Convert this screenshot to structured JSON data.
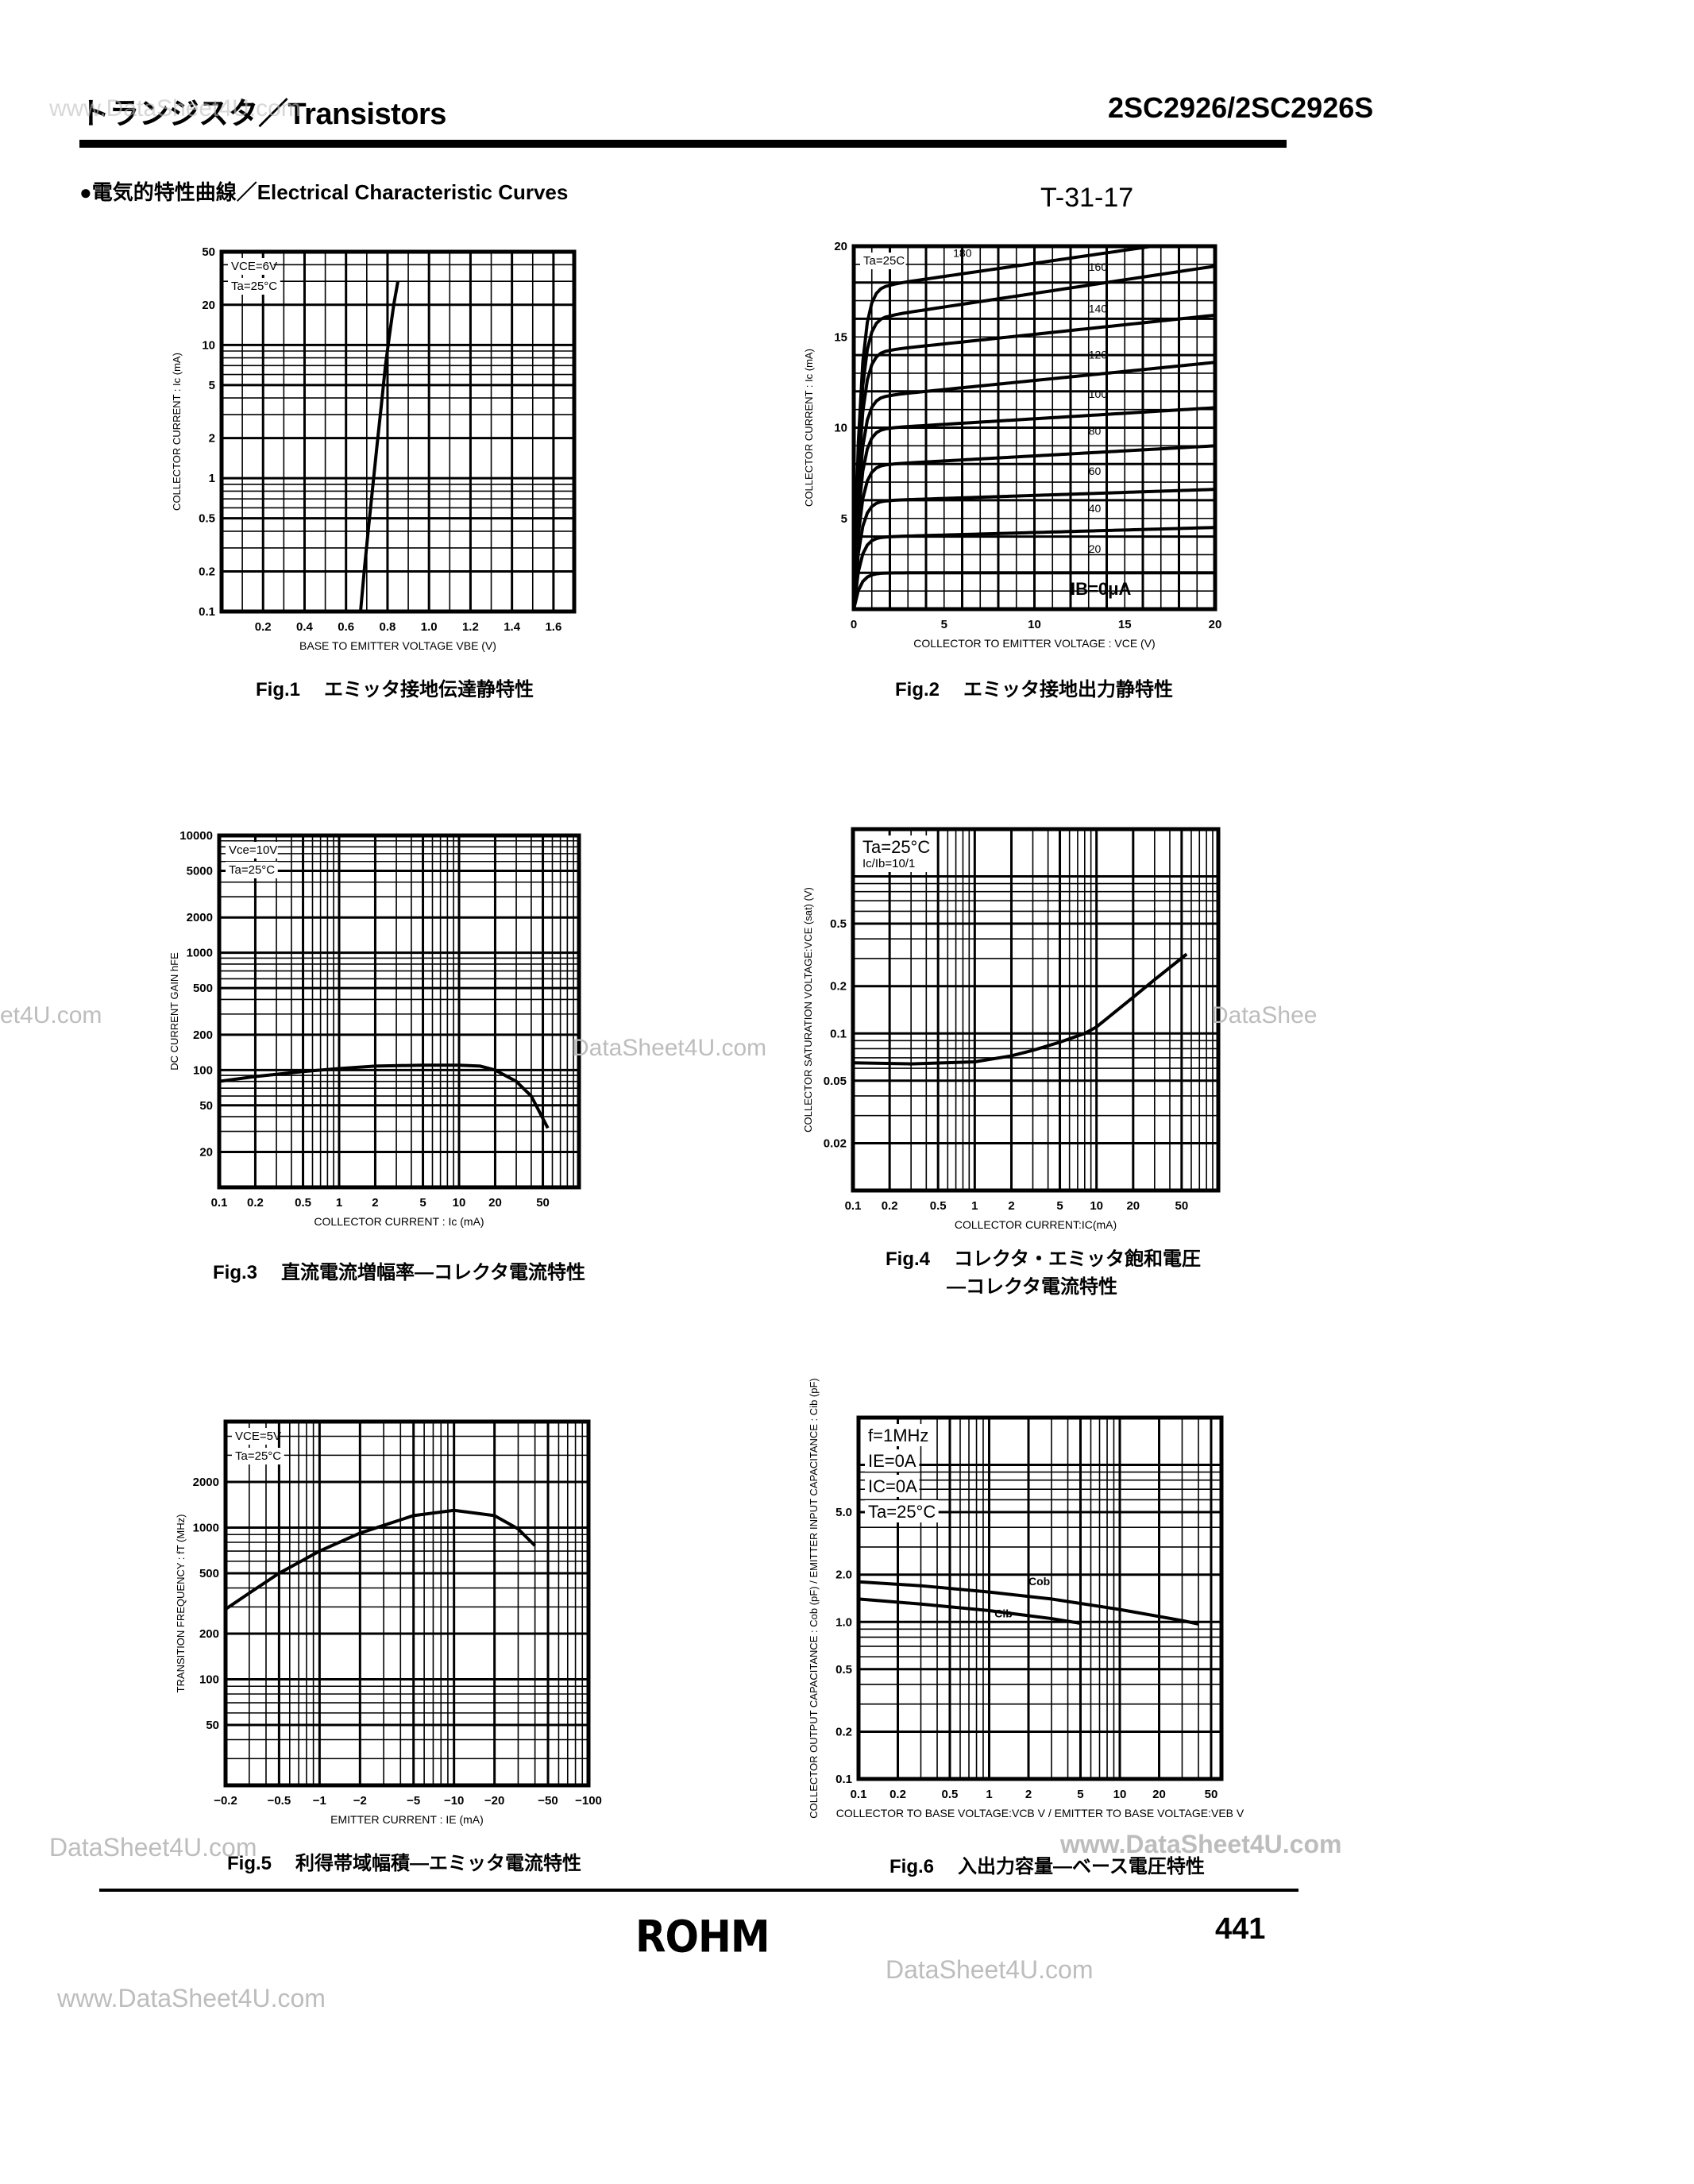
{
  "header": {
    "title": "トランジスタ／Transistors",
    "part_number": "2SC2926/2SC2926S",
    "section_title": "●電気的特性曲線／Electrical Characteristic Curves",
    "doc_code": "T-31-17"
  },
  "footer": {
    "brand": "ROHM",
    "page_number": "441"
  },
  "watermarks": [
    "www.DataSheet4U.com",
    "DataSheet4U.com",
    "et4U.com",
    "DataShee",
    "www.DataSheet4U.com",
    "DataSheet4U.com",
    "DataSheet4U.com"
  ],
  "figures": [
    {
      "number": "Fig.1",
      "caption": "エミッタ接地伝達静特性"
    },
    {
      "number": "Fig.2",
      "caption": "エミッタ接地出力静特性"
    },
    {
      "number": "Fig.3",
      "caption": "直流電流増幅率―コレクタ電流特性"
    },
    {
      "number": "Fig.4",
      "caption": "コレクタ・エミッタ飽和電圧",
      "caption2": "―コレクタ電流特性"
    },
    {
      "number": "Fig.5",
      "caption": "利得帯域幅積―エミッタ電流特性"
    },
    {
      "number": "Fig.6",
      "caption": "入出力容量―ベース電圧特性"
    }
  ],
  "chart_data": [
    {
      "id": "fig1",
      "type": "line",
      "title": "Fig.1 エミッタ接地伝達静特性",
      "xlabel": "BASE TO EMITTER VOLTAGE VBE (V)",
      "ylabel": "COLLECTOR CURRENT : Ic (mA)",
      "xscale": "linear",
      "yscale": "log",
      "xlim": [
        0,
        1.7
      ],
      "ylim": [
        0.1,
        50
      ],
      "xticks": [
        "0.2",
        "0.4",
        "0.6",
        "0.8",
        "1.0",
        "1.2",
        "1.4",
        "1.6"
      ],
      "xtick_values": [
        0.2,
        0.4,
        0.6,
        0.8,
        1.0,
        1.2,
        1.4,
        1.6
      ],
      "yticks": [
        "0.1",
        "0.2",
        "0.5",
        "1",
        "2",
        "5",
        "10",
        "20",
        "50"
      ],
      "ytick_values": [
        0.1,
        0.2,
        0.5,
        1,
        2,
        5,
        10,
        20,
        50
      ],
      "annotations": [
        "VCE=6V",
        "Ta=25°C"
      ],
      "grid": true,
      "series": [
        {
          "name": "Ic",
          "x": [
            0.67,
            0.69,
            0.71,
            0.73,
            0.75,
            0.77,
            0.79,
            0.81,
            0.83,
            0.85
          ],
          "y": [
            0.1,
            0.22,
            0.45,
            0.9,
            1.8,
            3.5,
            7,
            12,
            20,
            30
          ]
        }
      ]
    },
    {
      "id": "fig2",
      "type": "line",
      "title": "Fig.2 エミッタ接地出力静特性",
      "xlabel": "COLLECTOR TO EMITTER VOLTAGE : VCE (V)",
      "ylabel": "COLLECTOR CURRENT : Ic (mA)",
      "xscale": "linear",
      "yscale": "linear",
      "xlim": [
        0,
        20
      ],
      "ylim": [
        0,
        20
      ],
      "xticks": [
        "0",
        "5",
        "10",
        "15",
        "20"
      ],
      "xtick_values": [
        0,
        5,
        10,
        15,
        20
      ],
      "yticks": [
        "5",
        "10",
        "15",
        "20"
      ],
      "ytick_values": [
        5,
        10,
        15,
        20
      ],
      "annotations": [
        "Ta=25C",
        "IB=0μA"
      ],
      "grid": true,
      "series": [
        {
          "name": "20",
          "sat": 2.0,
          "end": 2.0
        },
        {
          "name": "40",
          "sat": 4.0,
          "end": 4.5
        },
        {
          "name": "60",
          "sat": 6.0,
          "end": 6.6
        },
        {
          "name": "80",
          "sat": 8.0,
          "end": 9.0
        },
        {
          "name": "100",
          "sat": 10.0,
          "end": 11.1
        },
        {
          "name": "120",
          "sat": 11.8,
          "end": 13.6
        },
        {
          "name": "140",
          "sat": 14.3,
          "end": 16.2
        },
        {
          "name": "160",
          "sat": 16.2,
          "end": 18.9
        },
        {
          "name": "180",
          "sat": 17.9,
          "end": 20.5
        }
      ]
    },
    {
      "id": "fig3",
      "type": "line",
      "title": "Fig.3 直流電流増幅率―コレクタ電流特性",
      "xlabel": "COLLECTOR CURRENT : Ic (mA)",
      "ylabel": "DC CURRENT GAIN hFE",
      "xscale": "log",
      "yscale": "log",
      "xlim": [
        0.1,
        100
      ],
      "ylim": [
        10,
        10000
      ],
      "xticks": [
        "0.1",
        "0.2",
        "0.5",
        "1",
        "2",
        "5",
        "10",
        "20",
        "50"
      ],
      "xtick_values": [
        0.1,
        0.2,
        0.5,
        1,
        2,
        5,
        10,
        20,
        50
      ],
      "yticks": [
        "20",
        "50",
        "100",
        "200",
        "500",
        "1000",
        "2000",
        "5000",
        "10000"
      ],
      "ytick_values": [
        20,
        50,
        100,
        200,
        500,
        1000,
        2000,
        5000,
        10000
      ],
      "annotations": [
        "Vce=10V",
        "Ta=25°C"
      ],
      "grid": true,
      "series": [
        {
          "name": "hFE",
          "x": [
            0.1,
            0.2,
            0.5,
            1,
            2,
            5,
            10,
            15,
            20,
            30,
            40,
            55
          ],
          "y": [
            80,
            88,
            97,
            103,
            108,
            110,
            110,
            108,
            100,
            80,
            60,
            32
          ]
        }
      ]
    },
    {
      "id": "fig4",
      "type": "line",
      "title": "Fig.4 コレクタ・エミッタ飽和電圧―コレクタ電流特性",
      "xlabel": "COLLECTOR CURRENT:IC(mA)",
      "ylabel": "COLLECTOR SATURATION VOLTAGE:VCE (sat) (V)",
      "xscale": "log",
      "yscale": "log",
      "xlim": [
        0.1,
        100
      ],
      "ylim": [
        0.01,
        2
      ],
      "xticks": [
        "0.1",
        "0.2",
        "0.5",
        "1",
        "2",
        "5",
        "10",
        "20",
        "50"
      ],
      "xtick_values": [
        0.1,
        0.2,
        0.5,
        1,
        2,
        5,
        10,
        20,
        50
      ],
      "yticks": [
        "0.02",
        "0.05",
        "0.1",
        "0.2",
        "0.5"
      ],
      "ytick_values": [
        0.02,
        0.05,
        0.1,
        0.2,
        0.5
      ],
      "annotations": [
        "Ta=25°C",
        "Ic/Ib=10/1"
      ],
      "grid": true,
      "series": [
        {
          "name": "VCE(sat)",
          "x": [
            0.1,
            0.3,
            1,
            2,
            3,
            5,
            8,
            10,
            20,
            30,
            55
          ],
          "y": [
            0.065,
            0.064,
            0.066,
            0.072,
            0.078,
            0.088,
            0.1,
            0.11,
            0.17,
            0.22,
            0.32
          ]
        }
      ]
    },
    {
      "id": "fig5",
      "type": "line",
      "title": "Fig.5 利得帯域幅積―エミッタ電流特性",
      "xlabel": "EMITTER CURRENT : IE (mA)",
      "ylabel": "TRANSITION FREQUENCY : fT (MHz)",
      "xscale": "log",
      "yscale": "log",
      "xlim": [
        -0.2,
        -100
      ],
      "ylim": [
        20,
        5000
      ],
      "xticks": [
        "−0.2",
        "−0.5",
        "−1",
        "−2",
        "−5",
        "−10",
        "−20",
        "−50",
        "−100"
      ],
      "xtick_values": [
        0.2,
        0.5,
        1,
        2,
        5,
        10,
        20,
        50,
        100
      ],
      "yticks": [
        "50",
        "100",
        "200",
        "500",
        "1000",
        "2000"
      ],
      "ytick_values": [
        50,
        100,
        200,
        500,
        1000,
        2000
      ],
      "annotations": [
        "VCE=5V",
        "Ta=25°C"
      ],
      "grid": true,
      "series": [
        {
          "name": "fT",
          "x": [
            0.2,
            0.3,
            0.5,
            1,
            2,
            5,
            10,
            20,
            30,
            40
          ],
          "y": [
            290,
            370,
            500,
            700,
            920,
            1200,
            1300,
            1200,
            980,
            760
          ]
        }
      ]
    },
    {
      "id": "fig6",
      "type": "line",
      "title": "Fig.6 入出力容量―ベース電圧特性",
      "xlabel": "COLLECTOR TO BASE VOLTAGE:VCB V / EMITTER TO BASE VOLTAGE:VEB V",
      "ylabel": "COLLECTOR OUTPUT CAPACITANCE : Cob (pF) / EMITTER INPUT CAPACITANCE : Cib (pF)",
      "xscale": "log",
      "yscale": "log",
      "xlim": [
        0.1,
        60
      ],
      "ylim": [
        0.1,
        20
      ],
      "xticks": [
        "0.1",
        "0.2",
        "0.5",
        "1",
        "2",
        "5",
        "10",
        "20",
        "50"
      ],
      "xtick_values": [
        0.1,
        0.2,
        0.5,
        1,
        2,
        5,
        10,
        20,
        50
      ],
      "yticks": [
        "0.1",
        "0.2",
        "0.5",
        "1.0",
        "2.0",
        "5.0"
      ],
      "ytick_values": [
        0.1,
        0.2,
        0.5,
        1.0,
        2.0,
        5.0
      ],
      "annotations": [
        "f=1MHz",
        "IE=0A",
        "IC=0A",
        "Ta=25°C"
      ],
      "grid": true,
      "series": [
        {
          "name": "Cob",
          "x": [
            0.1,
            0.3,
            1,
            3,
            10,
            30,
            40
          ],
          "y": [
            1.8,
            1.7,
            1.55,
            1.4,
            1.2,
            1.02,
            0.97
          ]
        },
        {
          "name": "Cib",
          "x": [
            0.1,
            0.3,
            1,
            3,
            5
          ],
          "y": [
            1.4,
            1.3,
            1.18,
            1.05,
            0.98
          ]
        }
      ]
    }
  ]
}
